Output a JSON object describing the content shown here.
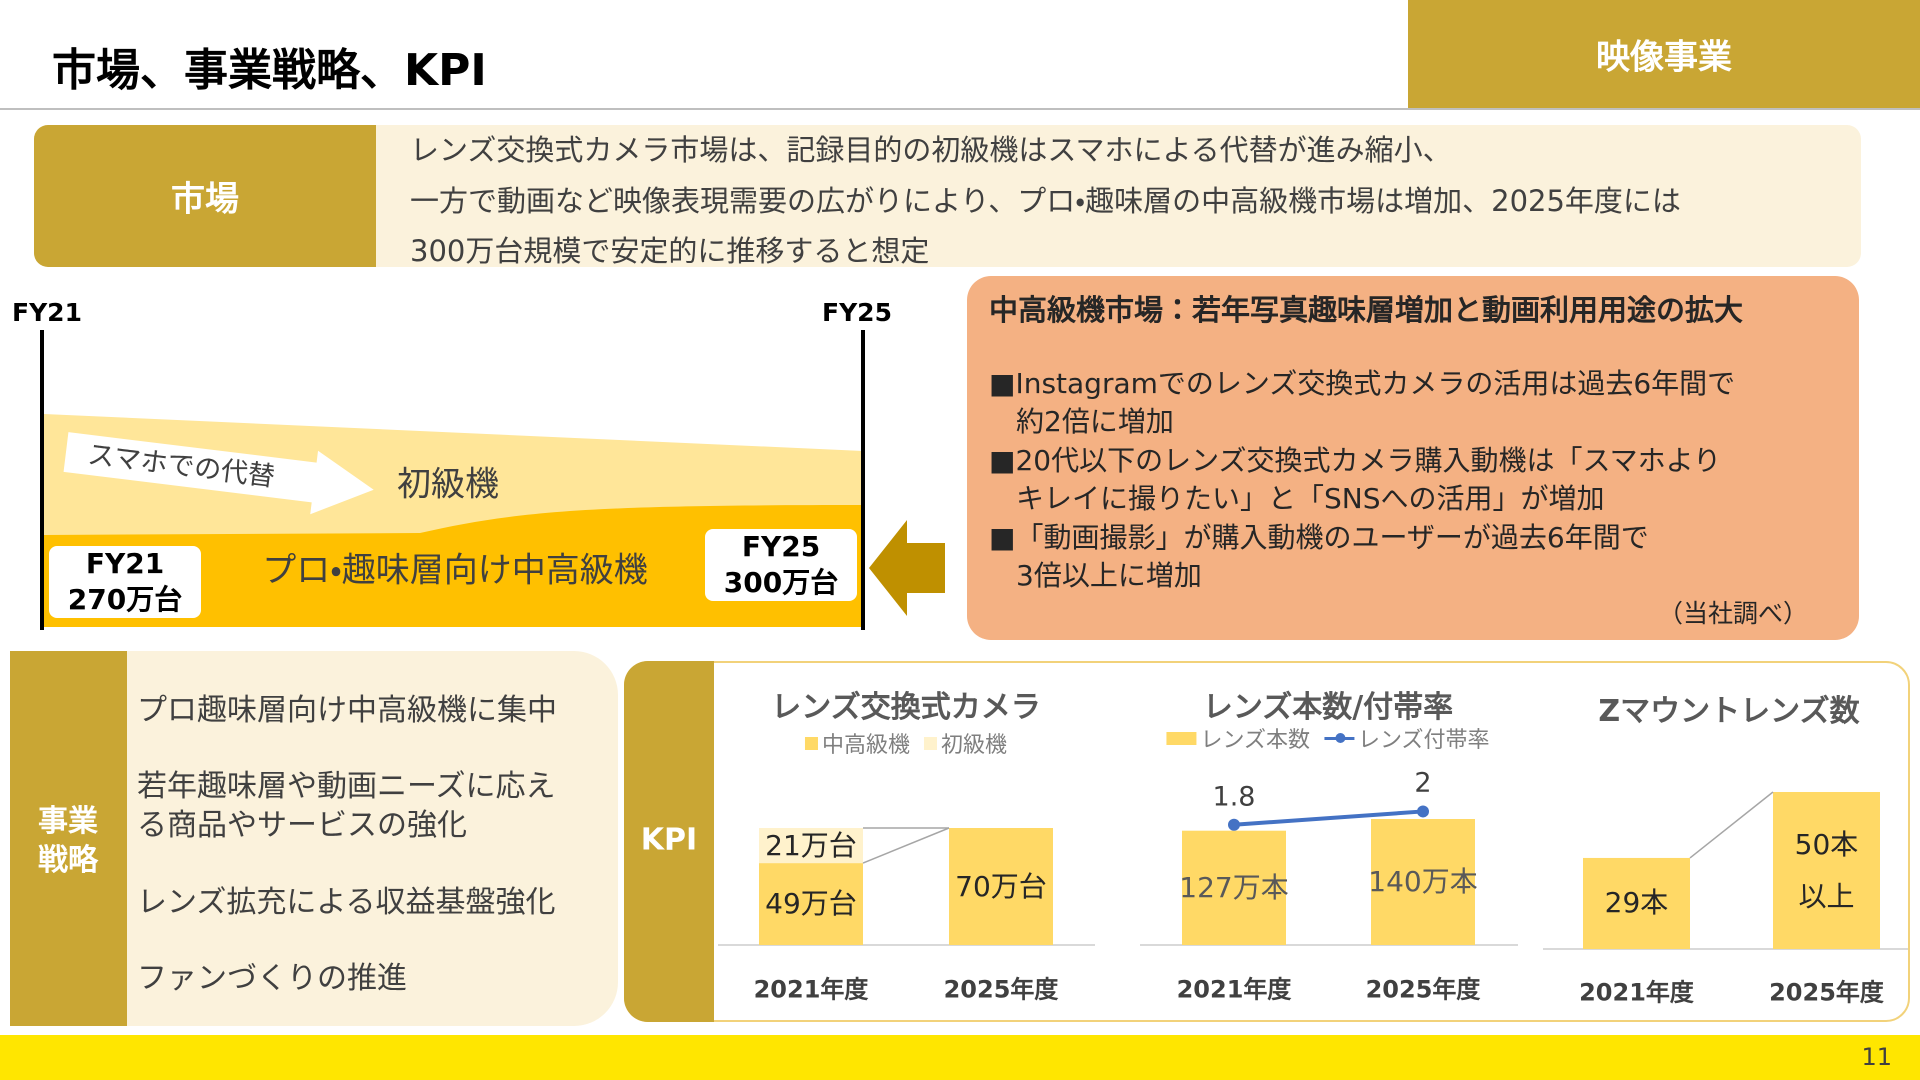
{
  "header": {
    "title": "市場、事業戦略、KPI",
    "segment": "映像事業"
  },
  "market": {
    "label": "市場",
    "lines": [
      "レンズ交換式カメラ市場は、記録目的の初級機はスマホによる代替が進み縮小、",
      "一方で動画など映像表現需要の広がりにより、プロ・趣味層の中高級機市場は増加、2025年度には",
      "300万台規模で安定的に推移すると想定"
    ]
  },
  "timeline": {
    "start": "FY21",
    "end": "FY25",
    "substitution": "スマホでの代替",
    "entry_segment": "初級機",
    "high_segment": "プロ・趣味層向け中高級機",
    "start_box": [
      "FY21",
      "270万台"
    ],
    "end_box": [
      "FY25",
      "300万台"
    ]
  },
  "highlights": {
    "title": "中高級機市場：若年写真趣味層増加と動画利用用途の拡大",
    "bullets": [
      [
        "■Instagramでのレンズ交換式カメラの活用は過去6年間で",
        "約2倍に増加"
      ],
      [
        "■20代以下のレンズ交換式カメラ購入動機は「スマホより",
        "キレイに撮りたい」と「SNSへの活用」が増加"
      ],
      [
        "■「動画撮影」が購入動機のユーザーが過去6年間で",
        "3倍以上に増加"
      ]
    ],
    "source": "（当社調べ）"
  },
  "strategy": {
    "label": [
      "事業",
      "戦略"
    ],
    "items": [
      [
        "プロ趣味層向け中高級機に集中"
      ],
      [
        "若年趣味層や動画ニーズに応え",
        "る商品やサービスの強化"
      ],
      [
        "レンズ拡充による収益基盤強化"
      ],
      [
        "ファンづくりの推進"
      ]
    ]
  },
  "kpi": {
    "label": "KPI"
  },
  "chart_data": [
    {
      "type": "bar",
      "stacked": true,
      "title": "レンズ交換式カメラ",
      "categories": [
        "2021年度",
        "2025年度"
      ],
      "series": [
        {
          "name": "中高級機",
          "color": "#ffd966",
          "values": [
            49,
            70
          ],
          "value_labels": [
            "49万台",
            "70万台"
          ]
        },
        {
          "name": "初級機",
          "color": "#fff2cc",
          "values": [
            21,
            null
          ],
          "value_labels": [
            "21万台",
            null
          ]
        }
      ]
    },
    {
      "type": "bar",
      "title": "レンズ本数/付帯率",
      "categories": [
        "2021年度",
        "2025年度"
      ],
      "series": [
        {
          "name": "レンズ本数",
          "color": "#ffd966",
          "values": [
            127,
            140
          ],
          "value_labels": [
            "127万本",
            "140万本"
          ]
        },
        {
          "name": "レンズ付帯率",
          "type": "line",
          "axis": "y2",
          "color": "#4472c4",
          "values": [
            1.8,
            2
          ]
        }
      ]
    },
    {
      "type": "bar",
      "title": "Zマウントレンズ数",
      "categories": [
        "2021年度",
        "2025年度"
      ],
      "color": "#ffd966",
      "values": [
        29,
        50
      ],
      "value_labels": [
        "29本",
        "50本以上"
      ]
    }
  ],
  "page_number": 11
}
